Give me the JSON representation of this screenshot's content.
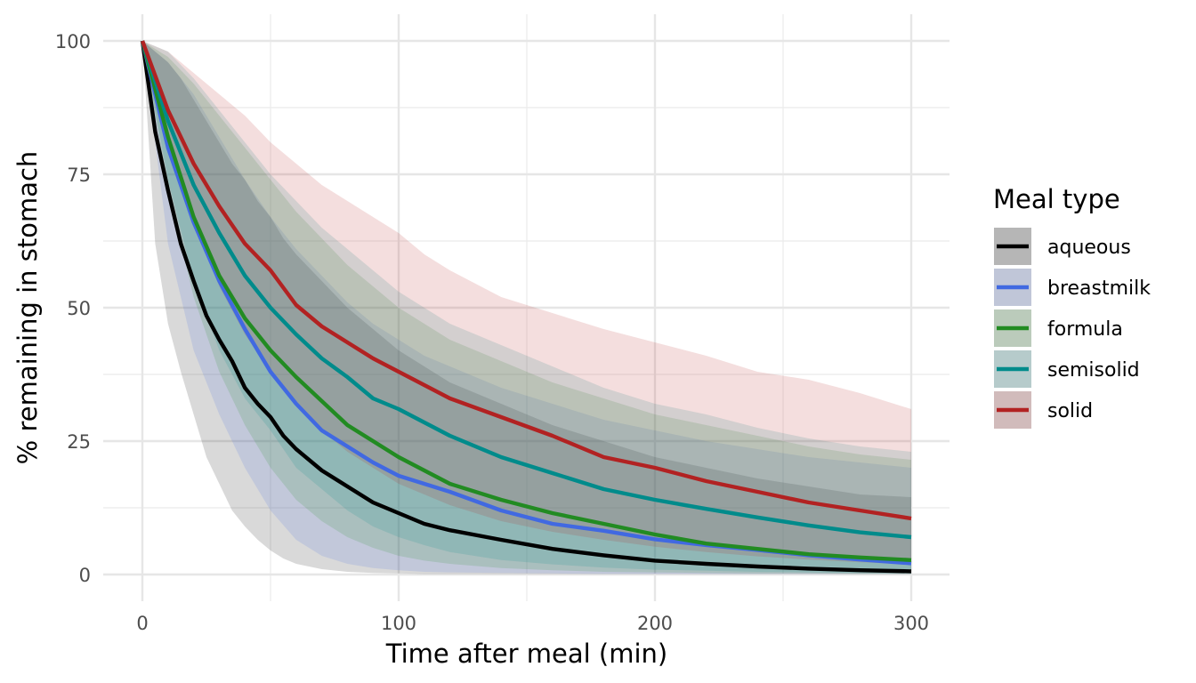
{
  "chart_data": {
    "type": "line",
    "xlabel": "Time after meal (min)",
    "ylabel": "% remaining in stomach",
    "xlim": [
      0,
      300
    ],
    "ylim": [
      0,
      100
    ],
    "x_ticks": [
      0,
      100,
      200,
      300
    ],
    "y_ticks": [
      0,
      25,
      50,
      75,
      100
    ],
    "grid": true,
    "legend": {
      "title": "Meal type",
      "position": "right"
    },
    "series": [
      {
        "name": "aqueous",
        "color": "#000000",
        "x": [
          0,
          5,
          10,
          15,
          20,
          25,
          30,
          35,
          40,
          45,
          50,
          55,
          60,
          70,
          80,
          90,
          100,
          110,
          120,
          140,
          160,
          180,
          200,
          220,
          240,
          260,
          280,
          300
        ],
        "y": [
          100,
          83,
          72,
          62,
          55,
          48.5,
          44,
          40,
          35,
          32,
          29.5,
          26,
          23.5,
          19.5,
          16.5,
          13.5,
          11.5,
          9.5,
          8.3,
          6.5,
          4.8,
          3.6,
          2.6,
          2.0,
          1.5,
          1.1,
          0.8,
          0.6
        ],
        "lower": [
          100,
          62,
          47,
          38,
          30,
          22,
          17,
          12,
          9,
          6.5,
          4.5,
          3.0,
          2.0,
          1.0,
          0.5,
          0.3,
          0.2,
          0.1,
          0.1,
          0.1,
          0.1,
          0.1,
          0.1,
          0.1,
          0.1,
          0.1,
          0.1,
          0.1
        ],
        "upper": [
          100,
          98,
          96,
          93,
          89,
          85,
          81,
          77,
          74,
          70,
          67,
          63,
          60,
          55,
          50,
          46,
          42,
          39,
          36,
          32,
          28,
          25,
          22,
          20,
          18,
          16.5,
          15,
          14.5
        ]
      },
      {
        "name": "breastmilk",
        "color": "#4169E1",
        "x": [
          0,
          10,
          20,
          30,
          40,
          50,
          60,
          70,
          80,
          90,
          100,
          110,
          120,
          140,
          160,
          180,
          200,
          220,
          240,
          260,
          280,
          300
        ],
        "y": [
          100,
          80,
          66,
          55,
          46,
          38,
          32,
          27,
          24,
          21,
          18.5,
          17,
          15.5,
          12,
          9.5,
          8.2,
          6.6,
          5.5,
          4.6,
          3.6,
          2.8,
          2.1
        ],
        "lower": [
          100,
          62,
          42,
          30,
          20,
          12,
          6.5,
          3.5,
          2.0,
          1.2,
          0.8,
          0.5,
          0.4,
          0.3,
          0.2,
          0.1,
          0.1,
          0.1,
          0.1,
          0.1,
          0.1,
          0.1
        ],
        "upper": [
          100,
          96,
          90,
          82,
          74,
          67,
          61,
          56,
          51,
          47,
          44,
          41,
          39,
          35,
          32,
          29,
          27,
          25,
          23.5,
          22,
          21,
          20
        ]
      },
      {
        "name": "formula",
        "color": "#228B22",
        "x": [
          0,
          10,
          20,
          30,
          40,
          50,
          60,
          70,
          80,
          90,
          100,
          110,
          120,
          140,
          160,
          180,
          200,
          220,
          240,
          260,
          280,
          300
        ],
        "y": [
          100,
          82,
          67,
          56,
          48,
          42,
          37,
          32.5,
          28,
          25,
          22,
          19.5,
          17,
          14,
          11.5,
          9.5,
          7.5,
          5.8,
          4.8,
          3.8,
          3.2,
          2.7
        ],
        "lower": [
          100,
          72,
          52,
          38,
          28,
          20,
          14,
          10,
          7,
          5,
          3.5,
          2.6,
          2.0,
          1.2,
          0.8,
          0.5,
          0.4,
          0.3,
          0.2,
          0.2,
          0.1,
          0.1
        ],
        "upper": [
          100,
          97,
          92,
          86,
          80,
          74,
          68,
          63,
          58,
          54,
          50,
          47,
          44,
          40,
          36,
          33,
          30,
          28,
          26,
          24,
          22.5,
          21.5
        ]
      },
      {
        "name": "semisolid",
        "color": "#008B8B",
        "x": [
          0,
          10,
          20,
          30,
          40,
          50,
          60,
          70,
          80,
          90,
          100,
          110,
          120,
          140,
          160,
          180,
          200,
          220,
          240,
          260,
          280,
          300
        ],
        "y": [
          100,
          85,
          73,
          64,
          56,
          50,
          45,
          40.5,
          37,
          33,
          31,
          28.5,
          26,
          22,
          19,
          16,
          14,
          12.3,
          10.7,
          9.2,
          7.9,
          7.0
        ],
        "lower": [
          100,
          74,
          55,
          42,
          33,
          27,
          20,
          16,
          12,
          9,
          7,
          5.5,
          4.2,
          2.7,
          1.9,
          1.3,
          0.9,
          0.7,
          0.5,
          0.4,
          0.3,
          0.2
        ],
        "upper": [
          100,
          98,
          93,
          87,
          81,
          75,
          70,
          65,
          61,
          57,
          53,
          50,
          47,
          43,
          39,
          35,
          32,
          30,
          27.5,
          25.5,
          24,
          23
        ]
      },
      {
        "name": "solid",
        "color": "#B22222",
        "x": [
          0,
          10,
          20,
          30,
          40,
          50,
          60,
          70,
          80,
          90,
          100,
          110,
          120,
          140,
          160,
          180,
          200,
          220,
          240,
          260,
          280,
          300
        ],
        "y": [
          100,
          87,
          77,
          69,
          62,
          57,
          50.5,
          46.5,
          43.5,
          40.5,
          38,
          35.5,
          33,
          29.5,
          26,
          22,
          20,
          17.5,
          15.5,
          13.5,
          12,
          10.5
        ],
        "lower": [
          100,
          82,
          66,
          54,
          45,
          38,
          32,
          27,
          23,
          20,
          17,
          15,
          13,
          10,
          8,
          6.5,
          5.2,
          4.2,
          3.4,
          2.8,
          2.3,
          1.9
        ],
        "upper": [
          100,
          98,
          94,
          90,
          86,
          81,
          77,
          73,
          70,
          67,
          64,
          60,
          57,
          52,
          49,
          46,
          43.5,
          41,
          38,
          36.5,
          34,
          31
        ]
      }
    ]
  }
}
